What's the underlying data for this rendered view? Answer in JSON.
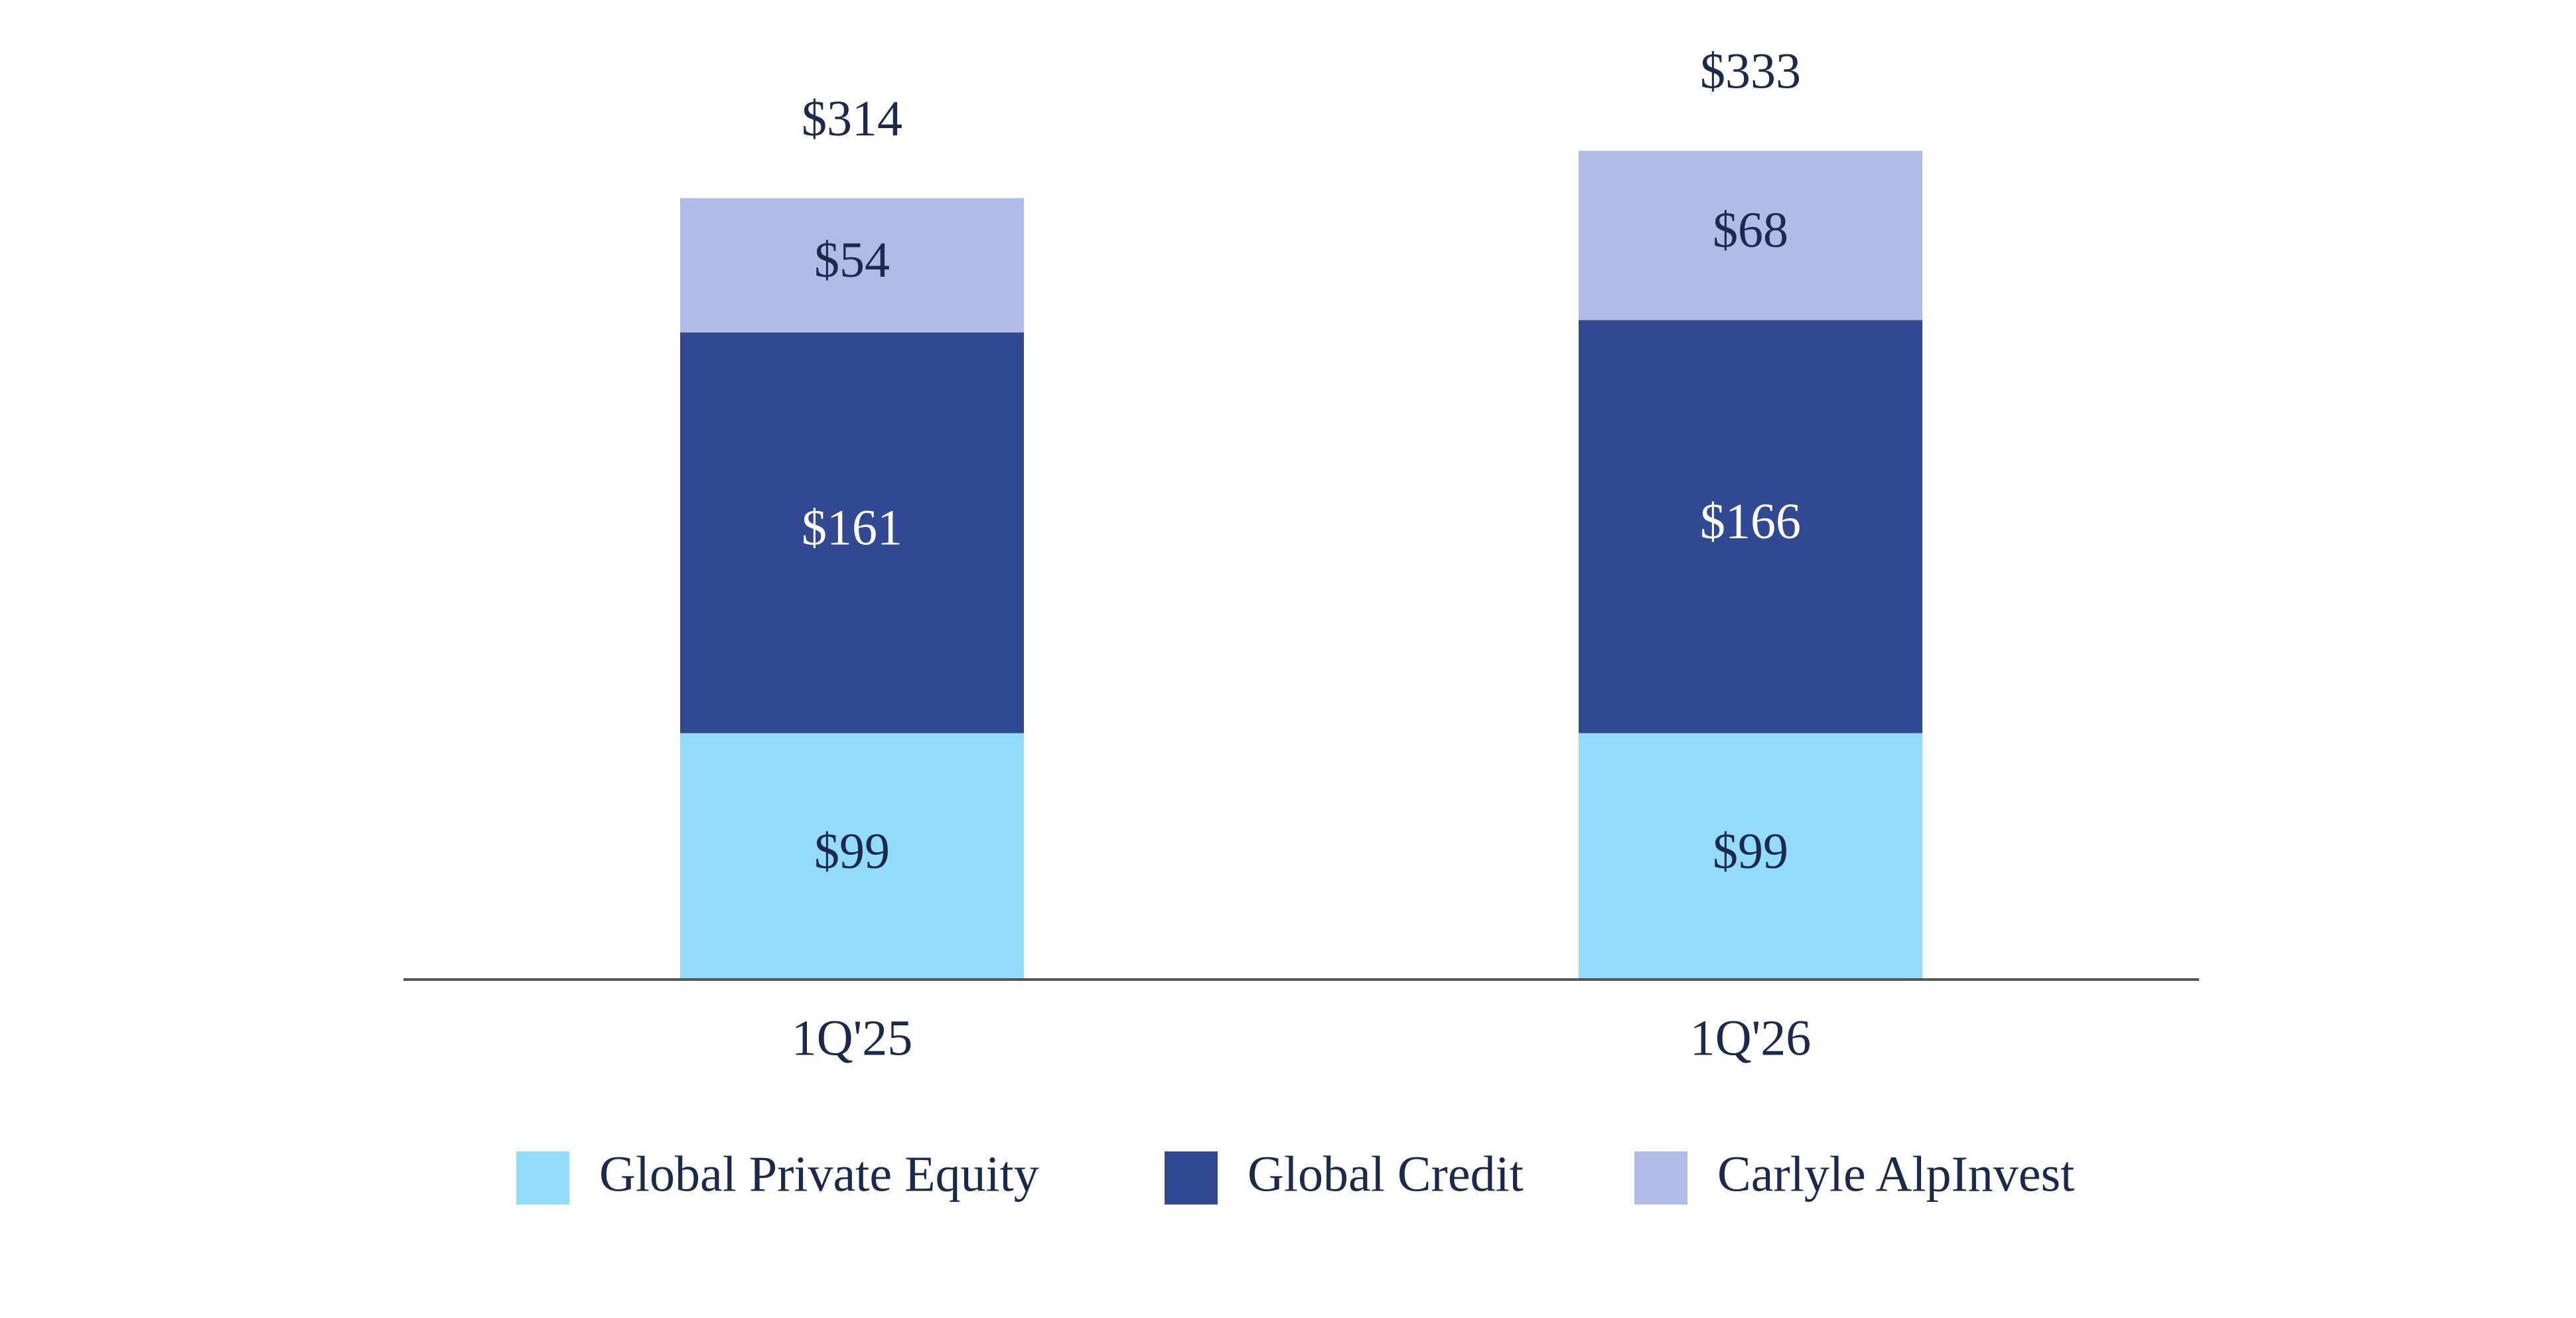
{
  "chart_data": {
    "type": "stacked_bar",
    "categories": [
      "1Q'25",
      "1Q'26"
    ],
    "series": [
      {
        "name": "Global Private Equity",
        "color": "#93dbfb",
        "values": [
          99,
          99
        ],
        "value_labels": [
          "$99",
          "$99"
        ],
        "label_color": "#1b2a4a"
      },
      {
        "name": "Global Credit",
        "color": "#314893",
        "values": [
          161,
          166
        ],
        "value_labels": [
          "$161",
          "$166"
        ],
        "label_color": "#ffffff"
      },
      {
        "name": "Carlyle AlpInvest",
        "color": "#b0bce5",
        "values": [
          54,
          68
        ],
        "value_labels": [
          "$54",
          "$68"
        ],
        "label_color": "#1b2a4a"
      }
    ],
    "totals": [
      314,
      333
    ],
    "total_labels": [
      "$314",
      "$333"
    ]
  }
}
